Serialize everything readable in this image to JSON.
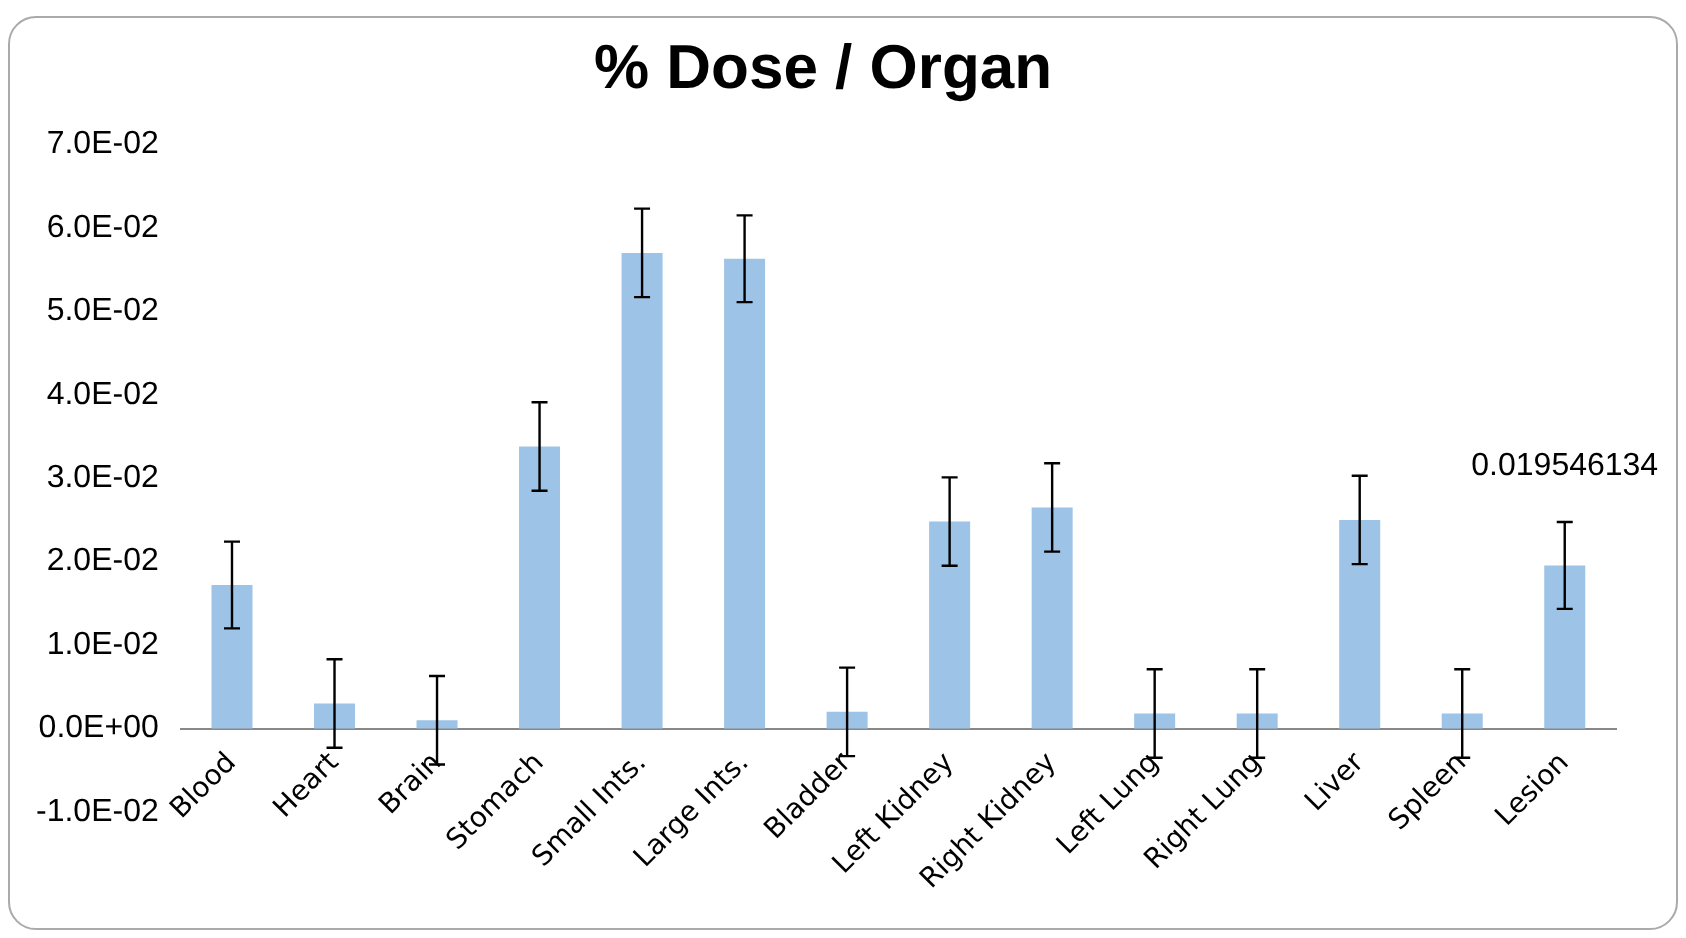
{
  "chart_data": {
    "type": "bar",
    "title": "% Dose / Organ",
    "categories": [
      "Blood",
      "Heart",
      "Brain",
      "Stomach",
      "Small Ints.",
      "Large Ints.",
      "Bladder",
      "Left Kidney",
      "Right Kidney",
      "Left Lung",
      "Right Lung",
      "Liver",
      "Spleen",
      "Lesion"
    ],
    "values": [
      0.0172,
      0.003,
      0.001,
      0.0338,
      0.057,
      0.0563,
      0.002,
      0.0248,
      0.0265,
      0.0018,
      0.0018,
      0.025,
      0.0018,
      0.019546134
    ],
    "errors": [
      0.0052,
      0.0053,
      0.0053,
      0.0053,
      0.0053,
      0.0052,
      0.0053,
      0.0053,
      0.0053,
      0.0053,
      0.0053,
      0.0053,
      0.0053,
      0.0052
    ],
    "value_labels": [
      null,
      null,
      null,
      null,
      null,
      null,
      null,
      null,
      null,
      null,
      null,
      null,
      null,
      "0.019546134"
    ],
    "color": "#9dc3e6",
    "ylim": [
      -0.01,
      0.07
    ],
    "yticks": [
      {
        "value": -0.01,
        "label": "-1.0E-02"
      },
      {
        "value": 0,
        "label": "0.0E+00"
      },
      {
        "value": 0.01,
        "label": "1.0E-02"
      },
      {
        "value": 0.02,
        "label": "2.0E-02"
      },
      {
        "value": 0.03,
        "label": "3.0E-02"
      },
      {
        "value": 0.04,
        "label": "4.0E-02"
      },
      {
        "value": 0.05,
        "label": "5.0E-02"
      },
      {
        "value": 0.06,
        "label": "6.0E-02"
      },
      {
        "value": 0.07,
        "label": "7.0E-02"
      }
    ],
    "grid": false,
    "legend": false
  }
}
